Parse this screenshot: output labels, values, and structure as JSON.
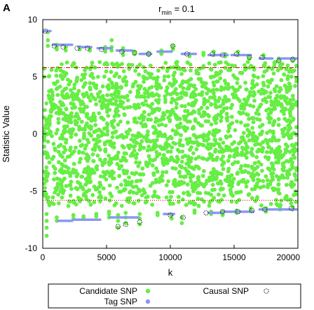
{
  "chart_data": {
    "type": "scatter",
    "panel_label": "A",
    "title": "r",
    "title_subscript": "min",
    "title_suffix": " = 0.1",
    "xlabel": "k",
    "ylabel": "Statistic Value",
    "xlim": [
      0,
      20000
    ],
    "ylim": [
      -10,
      10
    ],
    "xticks": [
      "0",
      "5000",
      "10000",
      "15000",
      "20000"
    ],
    "yticks": [
      "-10",
      "-5",
      "0",
      "5",
      "10"
    ],
    "thresholds": [
      {
        "y": 5.8,
        "color": "#cc0000",
        "style": "dash-dot"
      },
      {
        "y": -5.8,
        "color": "#cc0000",
        "style": "dotted"
      }
    ],
    "legend": {
      "placement": "bottom",
      "candidate_label": "Candidate SNP",
      "causal_label": "Causal SNP",
      "tag_label": "Tag SNP"
    },
    "colors": {
      "candidate": "#66ee44",
      "tag": "#8899ee",
      "causal_edge": "#000000",
      "threshold": "#cc0000"
    },
    "series": [
      {
        "name": "Candidate SNP",
        "role": "candidate",
        "bands": [
          {
            "x_start": 0,
            "x_end": 20000,
            "y_min": -4.5,
            "y_max": 4.5,
            "count": 1600
          },
          {
            "x_start": 0,
            "x_end": 20000,
            "y_min": 4.5,
            "y_max": 6.3,
            "count": 220
          },
          {
            "x_start": 0,
            "x_end": 20000,
            "y_min": -6.3,
            "y_max": -4.5,
            "count": 220
          }
        ],
        "columns": [
          {
            "x": 400,
            "y": [
              8.9,
              8.2,
              7.7
            ]
          },
          {
            "x": 1100,
            "y": [
              7.8,
              7.6,
              7.4
            ]
          },
          {
            "x": 1800,
            "y": [
              7.6,
              7.3
            ]
          },
          {
            "x": 2900,
            "y": [
              7.6,
              7.4
            ]
          },
          {
            "x": 3700,
            "y": [
              7.5,
              7.3
            ]
          },
          {
            "x": 4900,
            "y": [
              7.6,
              7.4,
              7.2
            ]
          },
          {
            "x": 5400,
            "y": [
              8.2,
              7.6,
              7.3
            ]
          },
          {
            "x": 6300,
            "y": [
              7.5,
              7.2,
              6.9
            ]
          },
          {
            "x": 7200,
            "y": [
              7.2,
              7.0
            ]
          },
          {
            "x": 8300,
            "y": [
              7.1,
              6.9
            ]
          },
          {
            "x": 9300,
            "y": [
              7.3,
              7.0
            ]
          },
          {
            "x": 10200,
            "y": [
              7.7,
              7.4
            ]
          },
          {
            "x": 11500,
            "y": [
              7.0,
              6.8
            ]
          },
          {
            "x": 12600,
            "y": [
              7.1,
              6.9
            ]
          },
          {
            "x": 13400,
            "y": [
              7.2,
              6.9
            ]
          },
          {
            "x": 14300,
            "y": [
              7.0,
              6.8
            ]
          },
          {
            "x": 15300,
            "y": [
              7.2,
              6.9
            ]
          },
          {
            "x": 16200,
            "y": [
              6.8,
              6.6
            ]
          },
          {
            "x": 17300,
            "y": [
              6.9,
              6.7
            ]
          },
          {
            "x": 18500,
            "y": [
              6.6,
              6.4
            ]
          },
          {
            "x": 19600,
            "y": [
              6.6,
              6.4
            ]
          },
          {
            "x": 300,
            "y": [
              -8.9,
              -8.2,
              -7.6,
              -7.0
            ]
          },
          {
            "x": 1100,
            "y": [
              -7.6,
              -7.3
            ]
          },
          {
            "x": 2400,
            "y": [
              -7.4,
              -7.1
            ]
          },
          {
            "x": 3200,
            "y": [
              -7.4,
              -7.2
            ]
          },
          {
            "x": 4200,
            "y": [
              -7.2,
              -7.0
            ]
          },
          {
            "x": 5200,
            "y": [
              -7.3,
              -7.0,
              -6.8
            ]
          },
          {
            "x": 5900,
            "y": [
              -8.2,
              -7.6,
              -7.1
            ]
          },
          {
            "x": 6500,
            "y": [
              -7.8,
              -7.3,
              -6.9
            ]
          },
          {
            "x": 7600,
            "y": [
              -7.9,
              -7.4,
              -7.0
            ]
          },
          {
            "x": 9000,
            "y": [
              -7.1,
              -6.9
            ]
          },
          {
            "x": 10100,
            "y": [
              -7.4,
              -7.1
            ]
          },
          {
            "x": 10900,
            "y": [
              -7.8,
              -7.3
            ]
          },
          {
            "x": 11900,
            "y": [
              -6.9,
              -6.7
            ]
          },
          {
            "x": 13200,
            "y": [
              -7.0,
              -6.8
            ]
          },
          {
            "x": 14100,
            "y": [
              -7.1,
              -6.8
            ]
          },
          {
            "x": 15200,
            "y": [
              -6.9,
              -6.7
            ]
          },
          {
            "x": 16300,
            "y": [
              -6.7,
              -6.5
            ]
          },
          {
            "x": 17500,
            "y": [
              -6.8,
              -6.5
            ]
          },
          {
            "x": 18600,
            "y": [
              -6.6,
              -6.4
            ]
          },
          {
            "x": 19600,
            "y": [
              -6.6,
              -6.4
            ]
          }
        ]
      },
      {
        "name": "Tag SNP",
        "role": "tag",
        "segments": [
          {
            "x1": 0,
            "x2": 600,
            "y": 9.0
          },
          {
            "x1": 800,
            "y": 7.8,
            "x2": 2300
          },
          {
            "x1": 2800,
            "y": 7.6,
            "x2": 3800
          },
          {
            "x1": 4300,
            "y": 7.5,
            "x2": 5400
          },
          {
            "x1": 5800,
            "y": 7.3,
            "x2": 7000
          },
          {
            "x1": 7600,
            "y": 7.0,
            "x2": 8500
          },
          {
            "x1": 9000,
            "y": 7.2,
            "x2": 10100
          },
          {
            "x1": 10900,
            "y": 7.0,
            "x2": 12000
          },
          {
            "x1": 13000,
            "y": 6.9,
            "x2": 14500
          },
          {
            "x1": 14800,
            "y": 6.9,
            "x2": 16300
          },
          {
            "x1": 17000,
            "y": 6.6,
            "x2": 18000
          },
          {
            "x1": 18500,
            "y": 6.6,
            "x2": 20000
          },
          {
            "x1": 1200,
            "y": -7.6,
            "x2": 2300
          },
          {
            "x1": 2400,
            "y": -7.5,
            "x2": 4500
          },
          {
            "x1": 5300,
            "y": -7.3,
            "x2": 7500
          },
          {
            "x1": 9500,
            "y": -7.0,
            "x2": 10300
          },
          {
            "x1": 13000,
            "y": -6.9,
            "x2": 14000
          },
          {
            "x1": 14200,
            "y": -6.8,
            "x2": 16500
          },
          {
            "x1": 17000,
            "y": -6.6,
            "x2": 18700
          },
          {
            "x1": 18700,
            "y": -6.6,
            "x2": 20000
          }
        ]
      },
      {
        "name": "Causal SNP",
        "role": "causal",
        "points": [
          {
            "x": 200,
            "y": 9.0
          },
          {
            "x": 900,
            "y": 7.7
          },
          {
            "x": 1600,
            "y": 7.6
          },
          {
            "x": 2700,
            "y": 7.5
          },
          {
            "x": 3500,
            "y": 7.5
          },
          {
            "x": 4600,
            "y": 7.4
          },
          {
            "x": 6200,
            "y": 7.2
          },
          {
            "x": 7200,
            "y": 7.1
          },
          {
            "x": 8300,
            "y": 7.0
          },
          {
            "x": 10200,
            "y": 7.7
          },
          {
            "x": 11300,
            "y": 7.0
          },
          {
            "x": 13300,
            "y": 7.0
          },
          {
            "x": 14100,
            "y": 6.9
          },
          {
            "x": 15200,
            "y": 7.0
          },
          {
            "x": 16200,
            "y": 6.7
          },
          {
            "x": 17200,
            "y": 6.7
          },
          {
            "x": 18500,
            "y": 6.4
          },
          {
            "x": 19600,
            "y": 6.5
          },
          {
            "x": 5900,
            "y": -8.1
          },
          {
            "x": 6500,
            "y": -7.9
          },
          {
            "x": 7600,
            "y": -7.7
          },
          {
            "x": 10000,
            "y": -7.1
          },
          {
            "x": 11000,
            "y": -7.3
          },
          {
            "x": 12800,
            "y": -6.9
          },
          {
            "x": 14100,
            "y": -6.8
          },
          {
            "x": 15300,
            "y": -6.8
          },
          {
            "x": 16400,
            "y": -6.7
          },
          {
            "x": 17400,
            "y": -6.6
          },
          {
            "x": 19500,
            "y": -6.5
          }
        ]
      }
    ]
  }
}
